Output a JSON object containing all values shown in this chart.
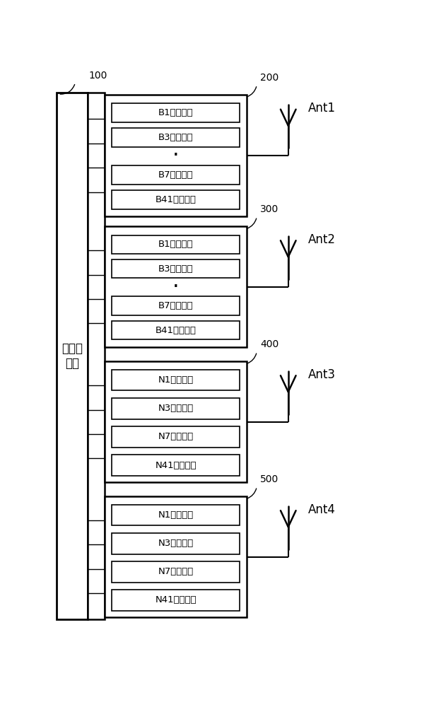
{
  "bg": "#ffffff",
  "fw": 5.97,
  "fh": 10.0,
  "left_label": "射频收\n发器",
  "modules": [
    {
      "id": "200",
      "items": [
        "B1接收通路",
        "B3接收通路",
        "⋯",
        "B7接收通路",
        "B41接收通路"
      ],
      "has_dots": true,
      "ant": "Ant1"
    },
    {
      "id": "300",
      "items": [
        "B1接收通路",
        "B3接收通路",
        "⋯",
        "B7接收通路",
        "B41接收通路"
      ],
      "has_dots": true,
      "ant": "Ant2"
    },
    {
      "id": "400",
      "items": [
        "N1接收通路",
        "N3接收通路",
        "N7接收通路",
        "N41接收通路"
      ],
      "has_dots": false,
      "ant": "Ant3"
    },
    {
      "id": "500",
      "items": [
        "N1接收通路",
        "N3接收通路",
        "N7接收通路",
        "N41接收通路"
      ],
      "has_dots": false,
      "ant": "Ant4"
    }
  ]
}
